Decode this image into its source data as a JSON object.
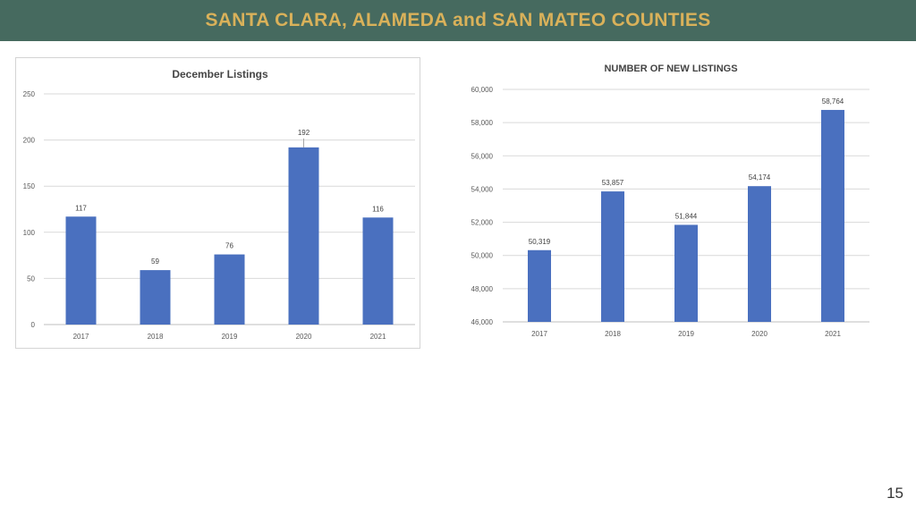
{
  "slide": {
    "title": "SANTA CLARA, ALAMEDA and SAN MATEO COUNTIES",
    "page_number": "15"
  },
  "colors": {
    "header_bg": "#466a5f",
    "header_text": "#d9b15a",
    "bar": "#4a70bf"
  },
  "chart_data": [
    {
      "type": "bar",
      "title": "December Listings",
      "categories": [
        "2017",
        "2018",
        "2019",
        "2020",
        "2021"
      ],
      "values": [
        117,
        59,
        76,
        192,
        116
      ],
      "value_labels": [
        "117",
        "59",
        "76",
        "192",
        "116"
      ],
      "yticks": [
        "0",
        "50",
        "100",
        "150",
        "200",
        "250"
      ],
      "ylim": [
        0,
        250
      ],
      "grid": true,
      "xlabel": "",
      "ylabel": ""
    },
    {
      "type": "bar",
      "title": "NUMBER OF NEW LISTINGS",
      "categories": [
        "2017",
        "2018",
        "2019",
        "2020",
        "2021"
      ],
      "values": [
        50319,
        53857,
        51844,
        54174,
        58764
      ],
      "value_labels": [
        "50,319",
        "53,857",
        "51,844",
        "54,174",
        "58,764"
      ],
      "yticks": [
        "46,000",
        "48,000",
        "50,000",
        "52,000",
        "54,000",
        "56,000",
        "58,000",
        "60,000"
      ],
      "ylim": [
        46000,
        60000
      ],
      "grid": true,
      "xlabel": "",
      "ylabel": ""
    }
  ]
}
